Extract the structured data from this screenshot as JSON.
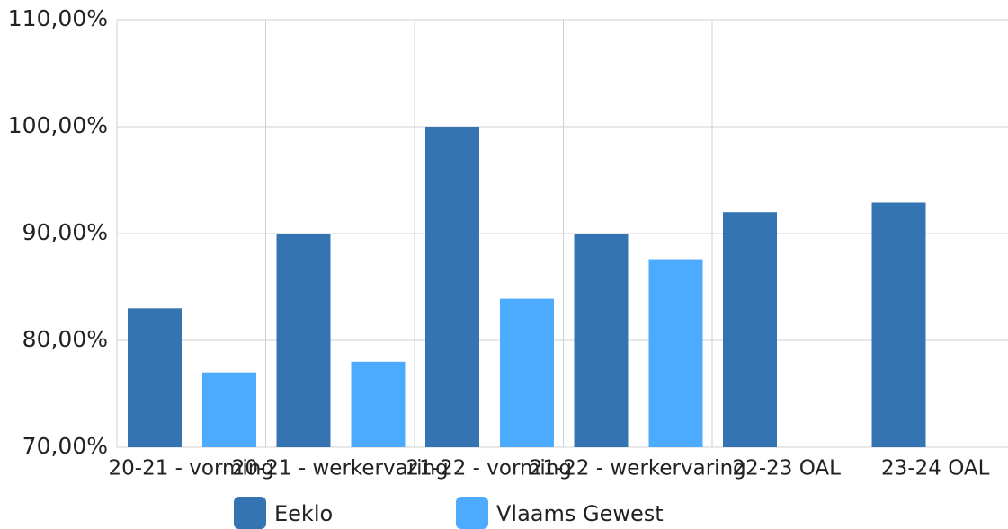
{
  "chart_data": {
    "type": "bar",
    "categories": [
      "20-21 - vorming",
      "20-21 - werkervaring",
      "21-22 - vorming",
      "21-22 - werkervaring",
      "22-23 OAL",
      "23-24 OAL"
    ],
    "series": [
      {
        "name": "Eeklo",
        "color": "#3574b3",
        "values": [
          83,
          90,
          100,
          90,
          92,
          92.9
        ]
      },
      {
        "name": "Vlaams Gewest",
        "color": "#4dabff",
        "values": [
          77,
          78,
          83.9,
          87.6,
          null,
          null
        ]
      }
    ],
    "ylim": [
      70,
      110
    ],
    "yticks": [
      {
        "value": 70,
        "label": "70,00%"
      },
      {
        "value": 80,
        "label": "80,00%"
      },
      {
        "value": 90,
        "label": "90,00%"
      },
      {
        "value": 100,
        "label": "100,00%"
      },
      {
        "value": 110,
        "label": "110,00%"
      }
    ],
    "grid": true
  }
}
